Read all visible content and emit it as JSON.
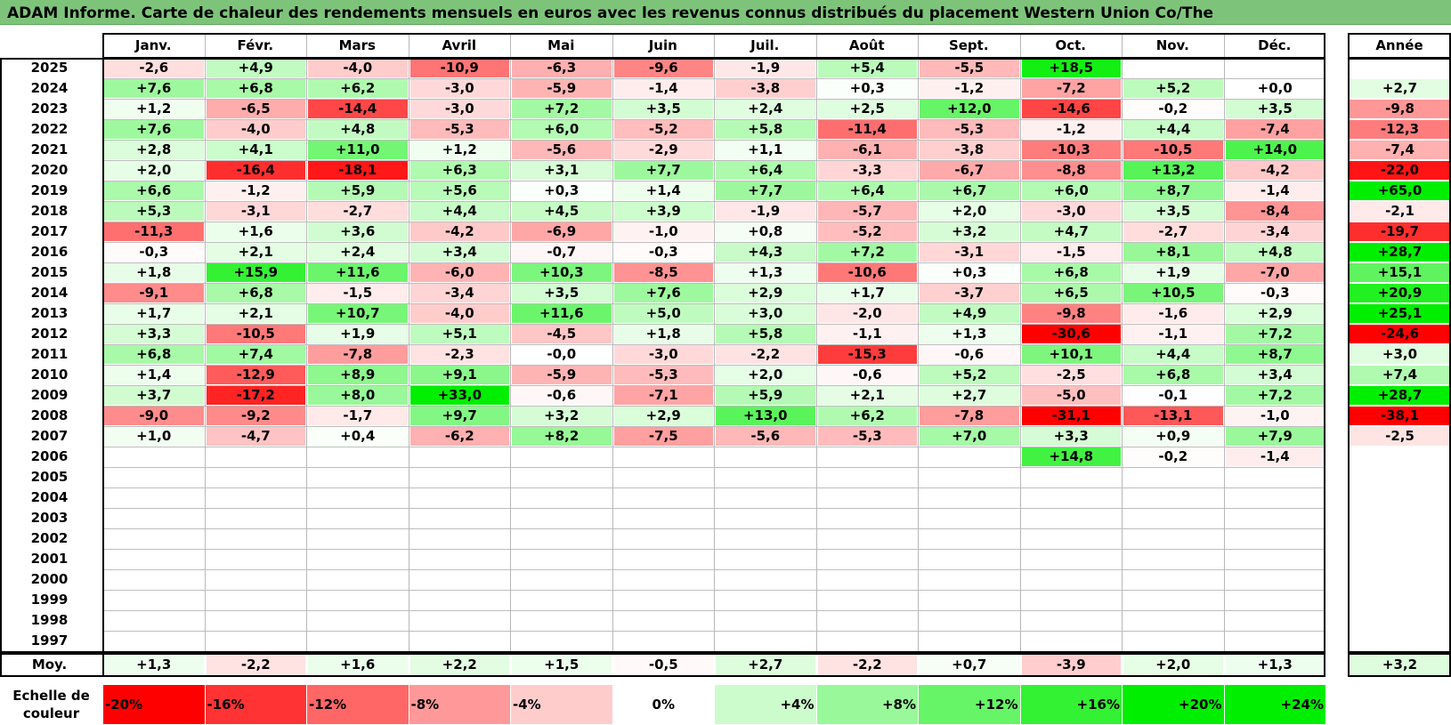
{
  "title": "ADAM Informe. Carte de chaleur des rendements mensuels en euros avec les revenus connus distribués du placement Western Union Co/The",
  "chart_data": {
    "type": "heatmap",
    "title": "ADAM Informe. Carte de chaleur des rendements mensuels en euros avec les revenus connus distribués du placement Western Union Co/The",
    "columns": [
      "Janv.",
      "Févr.",
      "Mars",
      "Avril",
      "Mai",
      "Juin",
      "Juil.",
      "Août",
      "Sept.",
      "Oct.",
      "Nov.",
      "Déc."
    ],
    "year_column_label": "Année",
    "rows": [
      {
        "year": "2025",
        "values": [
          "-2,6",
          "+4,9",
          "-4,0",
          "-10,9",
          "-6,3",
          "-9,6",
          "-1,9",
          "+5,4",
          "-5,5",
          "+18,5",
          "",
          ""
        ],
        "annual": ""
      },
      {
        "year": "2024",
        "values": [
          "+7,6",
          "+6,8",
          "+6,2",
          "-3,0",
          "-5,9",
          "-1,4",
          "-3,8",
          "+0,3",
          "-1,2",
          "-7,2",
          "+5,2",
          "+0,0"
        ],
        "annual": "+2,7"
      },
      {
        "year": "2023",
        "values": [
          "+1,2",
          "-6,5",
          "-14,4",
          "-3,0",
          "+7,2",
          "+3,5",
          "+2,4",
          "+2,5",
          "+12,0",
          "-14,6",
          "-0,2",
          "+3,5"
        ],
        "annual": "-9,8"
      },
      {
        "year": "2022",
        "values": [
          "+7,6",
          "-4,0",
          "+4,8",
          "-5,3",
          "+6,0",
          "-5,2",
          "+5,8",
          "-11,4",
          "-5,3",
          "-1,2",
          "+4,4",
          "-7,4"
        ],
        "annual": "-12,3"
      },
      {
        "year": "2021",
        "values": [
          "+2,8",
          "+4,1",
          "+11,0",
          "+1,2",
          "-5,6",
          "-2,9",
          "+1,1",
          "-6,1",
          "-3,8",
          "-10,3",
          "-10,5",
          "+14,0"
        ],
        "annual": "-7,4"
      },
      {
        "year": "2020",
        "values": [
          "+2,0",
          "-16,4",
          "-18,1",
          "+6,3",
          "+3,1",
          "+7,7",
          "+6,4",
          "-3,3",
          "-6,7",
          "-8,8",
          "+13,2",
          "-4,2"
        ],
        "annual": "-22,0"
      },
      {
        "year": "2019",
        "values": [
          "+6,6",
          "-1,2",
          "+5,9",
          "+5,6",
          "+0,3",
          "+1,4",
          "+7,7",
          "+6,4",
          "+6,7",
          "+6,0",
          "+8,7",
          "-1,4"
        ],
        "annual": "+65,0"
      },
      {
        "year": "2018",
        "values": [
          "+5,3",
          "-3,1",
          "-2,7",
          "+4,4",
          "+4,5",
          "+3,9",
          "-1,9",
          "-5,7",
          "+2,0",
          "-3,0",
          "+3,5",
          "-8,4"
        ],
        "annual": "-2,1"
      },
      {
        "year": "2017",
        "values": [
          "-11,3",
          "+1,6",
          "+3,6",
          "-4,2",
          "-6,9",
          "-1,0",
          "+0,8",
          "-5,2",
          "+3,2",
          "+4,7",
          "-2,7",
          "-3,4"
        ],
        "annual": "-19,7"
      },
      {
        "year": "2016",
        "values": [
          "-0,3",
          "+2,1",
          "+2,4",
          "+3,4",
          "-0,7",
          "-0,3",
          "+4,3",
          "+7,2",
          "-3,1",
          "-1,5",
          "+8,1",
          "+4,8"
        ],
        "annual": "+28,7"
      },
      {
        "year": "2015",
        "values": [
          "+1,8",
          "+15,9",
          "+11,6",
          "-6,0",
          "+10,3",
          "-8,5",
          "+1,3",
          "-10,6",
          "+0,3",
          "+6,8",
          "+1,9",
          "-7,0"
        ],
        "annual": "+15,1"
      },
      {
        "year": "2014",
        "values": [
          "-9,1",
          "+6,8",
          "-1,5",
          "-3,4",
          "+3,5",
          "+7,6",
          "+2,9",
          "+1,7",
          "-3,7",
          "+6,5",
          "+10,5",
          "-0,3"
        ],
        "annual": "+20,9"
      },
      {
        "year": "2013",
        "values": [
          "+1,7",
          "+2,1",
          "+10,7",
          "-4,0",
          "+11,6",
          "+5,0",
          "+3,0",
          "-2,0",
          "+4,9",
          "-9,8",
          "-1,6",
          "+2,9"
        ],
        "annual": "+25,1"
      },
      {
        "year": "2012",
        "values": [
          "+3,3",
          "-10,5",
          "+1,9",
          "+5,1",
          "-4,5",
          "+1,8",
          "+5,8",
          "-1,1",
          "+1,3",
          "-30,6",
          "-1,1",
          "+7,2"
        ],
        "annual": "-24,6"
      },
      {
        "year": "2011",
        "values": [
          "+6,8",
          "+7,4",
          "-7,8",
          "-2,3",
          "-0,0",
          "-3,0",
          "-2,2",
          "-15,3",
          "-0,6",
          "+10,1",
          "+4,4",
          "+8,7"
        ],
        "annual": "+3,0"
      },
      {
        "year": "2010",
        "values": [
          "+1,4",
          "-12,9",
          "+8,9",
          "+9,1",
          "-5,9",
          "-5,3",
          "+2,0",
          "-0,6",
          "+5,2",
          "-2,5",
          "+6,8",
          "+3,4"
        ],
        "annual": "+7,4"
      },
      {
        "year": "2009",
        "values": [
          "+3,7",
          "-17,2",
          "+8,0",
          "+33,0",
          "-0,6",
          "-7,1",
          "+5,9",
          "+2,1",
          "+2,7",
          "-5,0",
          "-0,1",
          "+7,2"
        ],
        "annual": "+28,7"
      },
      {
        "year": "2008",
        "values": [
          "-9,0",
          "-9,2",
          "-1,7",
          "+9,7",
          "+3,2",
          "+2,9",
          "+13,0",
          "+6,2",
          "-7,8",
          "-31,1",
          "-13,1",
          "-1,0"
        ],
        "annual": "-38,1"
      },
      {
        "year": "2007",
        "values": [
          "+1,0",
          "-4,7",
          "+0,4",
          "-6,2",
          "+8,2",
          "-7,5",
          "-5,6",
          "-5,3",
          "+7,0",
          "+3,3",
          "+0,9",
          "+7,9"
        ],
        "annual": "-2,5"
      },
      {
        "year": "2006",
        "values": [
          "",
          "",
          "",
          "",
          "",
          "",
          "",
          "",
          "",
          "+14,8",
          "-0,2",
          "-1,4"
        ],
        "annual": ""
      },
      {
        "year": "2005",
        "values": [
          "",
          "",
          "",
          "",
          "",
          "",
          "",
          "",
          "",
          "",
          "",
          ""
        ],
        "annual": ""
      },
      {
        "year": "2004",
        "values": [
          "",
          "",
          "",
          "",
          "",
          "",
          "",
          "",
          "",
          "",
          "",
          ""
        ],
        "annual": ""
      },
      {
        "year": "2003",
        "values": [
          "",
          "",
          "",
          "",
          "",
          "",
          "",
          "",
          "",
          "",
          "",
          ""
        ],
        "annual": ""
      },
      {
        "year": "2002",
        "values": [
          "",
          "",
          "",
          "",
          "",
          "",
          "",
          "",
          "",
          "",
          "",
          ""
        ],
        "annual": ""
      },
      {
        "year": "2001",
        "values": [
          "",
          "",
          "",
          "",
          "",
          "",
          "",
          "",
          "",
          "",
          "",
          ""
        ],
        "annual": ""
      },
      {
        "year": "2000",
        "values": [
          "",
          "",
          "",
          "",
          "",
          "",
          "",
          "",
          "",
          "",
          "",
          ""
        ],
        "annual": ""
      },
      {
        "year": "1999",
        "values": [
          "",
          "",
          "",
          "",
          "",
          "",
          "",
          "",
          "",
          "",
          "",
          ""
        ],
        "annual": ""
      },
      {
        "year": "1998",
        "values": [
          "",
          "",
          "",
          "",
          "",
          "",
          "",
          "",
          "",
          "",
          "",
          ""
        ],
        "annual": ""
      },
      {
        "year": "1997",
        "values": [
          "",
          "",
          "",
          "",
          "",
          "",
          "",
          "",
          "",
          "",
          "",
          ""
        ],
        "annual": ""
      }
    ],
    "average": {
      "label": "Moy.",
      "values": [
        "+1,3",
        "-2,2",
        "+1,6",
        "+2,2",
        "+1,5",
        "-0,5",
        "+2,7",
        "-2,2",
        "+0,7",
        "-3,9",
        "+2,0",
        "+1,3"
      ],
      "annual": "+3,2"
    },
    "color_scale": {
      "label": "Echelle de couleur",
      "steps": [
        "-20%",
        "-16%",
        "-12%",
        "-8%",
        "-4%",
        "0%",
        "+4%",
        "+8%",
        "+12%",
        "+16%",
        "+20%",
        "+24%"
      ],
      "negative_color": "#ff0000",
      "positive_color": "#00ee00",
      "neutral_color": "#ffffff"
    }
  }
}
